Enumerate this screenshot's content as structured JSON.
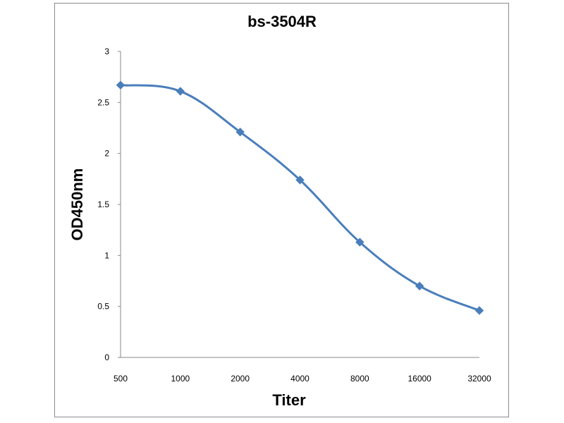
{
  "chart_data": {
    "type": "line",
    "title": "bs-3504R",
    "xlabel": "Titer",
    "ylabel": "OD450nm",
    "categories": [
      "500",
      "1000",
      "2000",
      "4000",
      "8000",
      "16000",
      "32000"
    ],
    "series": [
      {
        "values": [
          2.67,
          2.61,
          2.21,
          1.74,
          1.13,
          0.7,
          0.46
        ]
      }
    ],
    "yticks": [
      "0",
      "0.5",
      "1",
      "1.5",
      "2",
      "2.5",
      "3"
    ],
    "ylim": [
      0,
      3
    ],
    "grid": false,
    "legend": "none",
    "colors": {
      "line": "#4a7ebb",
      "marker": "#4a7ebb",
      "axis": "#8a8a8a",
      "frame": "#8a8a8a"
    },
    "marker": "diamond",
    "smooth": true
  }
}
